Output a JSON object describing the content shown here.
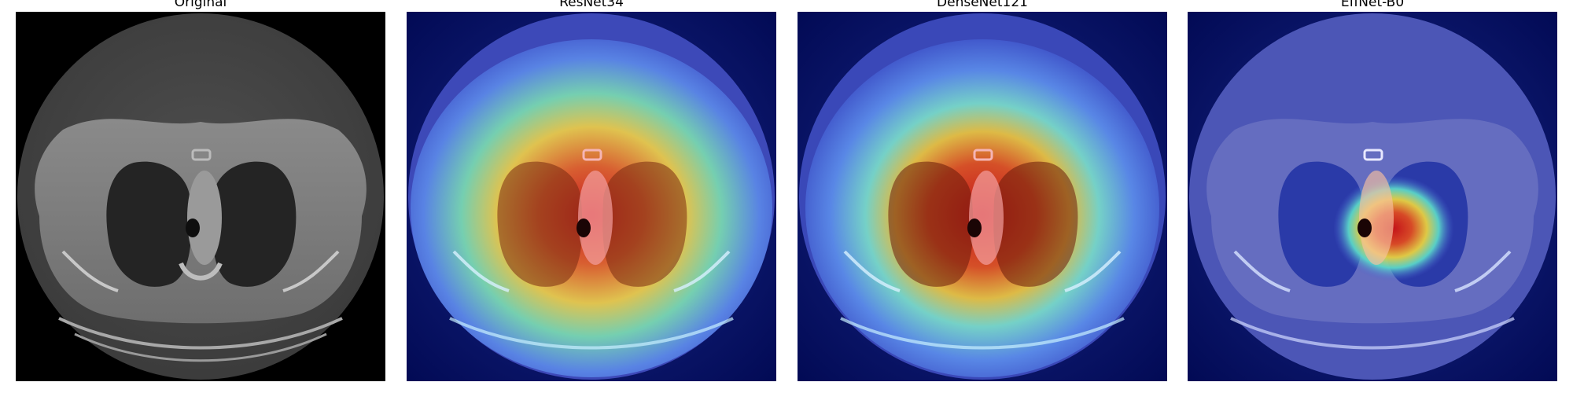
{
  "panels": [
    {
      "title": "Original",
      "overlay": "none"
    },
    {
      "title": "ResNet34",
      "overlay": "broad-heatmap"
    },
    {
      "title": "DenseNet121",
      "overlay": "broad-heatmap"
    },
    {
      "title": "EffNet-B0",
      "overlay": "focused-heatmap"
    }
  ],
  "colors": {
    "background": "#000000",
    "colormap": "jet"
  }
}
